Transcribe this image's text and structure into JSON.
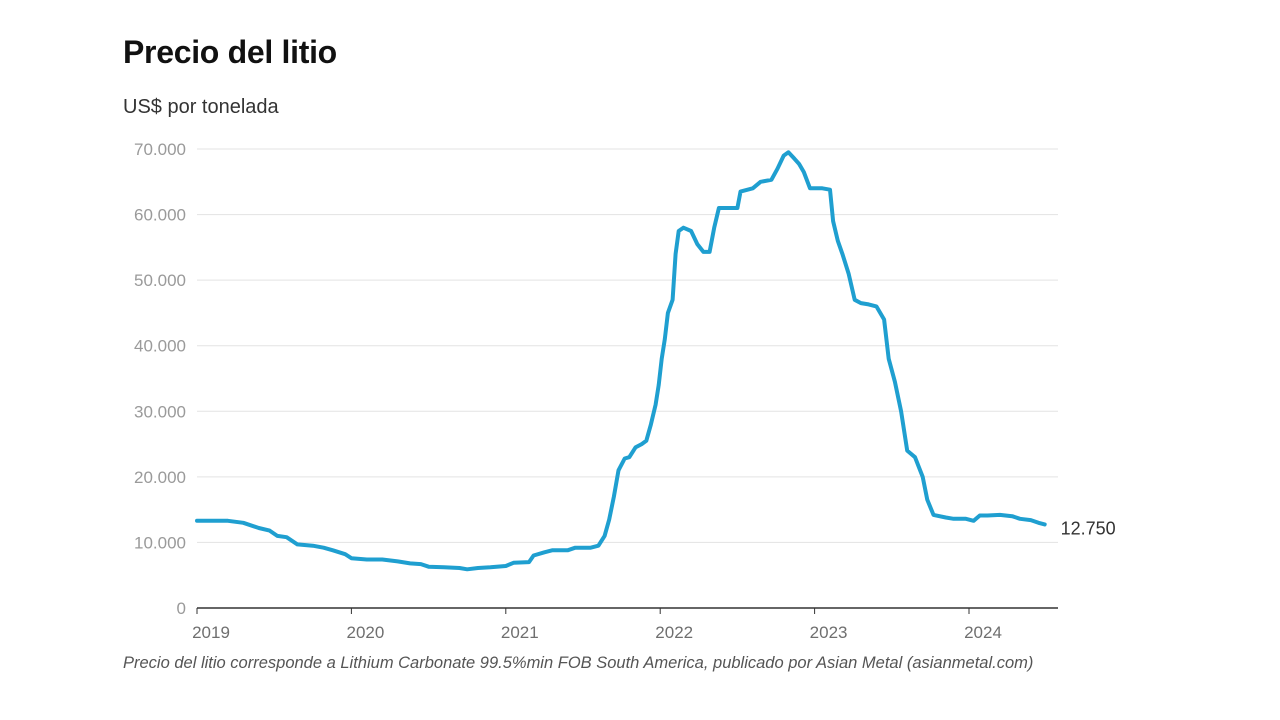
{
  "title": "Precio del litio",
  "subtitle": "US$ por tonelada",
  "note": "Precio del litio corresponde a Lithium Carbonate 99.5%min FOB South America, publicado por Asian Metal (asianmetal.com)",
  "colors": {
    "line": "#1f9fd0",
    "grid": "#e3e3e3",
    "axis": "#333333"
  },
  "chart_data": {
    "type": "line",
    "title": "Precio del litio",
    "ylabel": "US$ por tonelada",
    "xlabel": "",
    "xlim": [
      2019,
      2024.5
    ],
    "ylim": [
      0,
      70000
    ],
    "y_ticks": [
      {
        "value": 0,
        "label": "0"
      },
      {
        "value": 10000,
        "label": "10.000"
      },
      {
        "value": 20000,
        "label": "20.000"
      },
      {
        "value": 30000,
        "label": "30.000"
      },
      {
        "value": 40000,
        "label": "40.000"
      },
      {
        "value": 50000,
        "label": "50.000"
      },
      {
        "value": 60000,
        "label": "60.000"
      },
      {
        "value": 70000,
        "label": "70.000"
      }
    ],
    "x_ticks": [
      {
        "value": 2019,
        "label": "2019"
      },
      {
        "value": 2020,
        "label": "2020"
      },
      {
        "value": 2021,
        "label": "2021"
      },
      {
        "value": 2022,
        "label": "2022"
      },
      {
        "value": 2023,
        "label": "2023"
      },
      {
        "value": 2024,
        "label": "2024"
      }
    ],
    "grid": true,
    "end_label": "12.750",
    "series": [
      {
        "points": [
          [
            2019.0,
            13300
          ],
          [
            2019.1,
            13300
          ],
          [
            2019.2,
            13300
          ],
          [
            2019.3,
            13000
          ],
          [
            2019.4,
            12200
          ],
          [
            2019.47,
            11800
          ],
          [
            2019.52,
            11000
          ],
          [
            2019.58,
            10800
          ],
          [
            2019.65,
            9700
          ],
          [
            2019.75,
            9500
          ],
          [
            2019.82,
            9200
          ],
          [
            2019.88,
            8800
          ],
          [
            2019.96,
            8200
          ],
          [
            2020.0,
            7600
          ],
          [
            2020.1,
            7400
          ],
          [
            2020.2,
            7400
          ],
          [
            2020.3,
            7100
          ],
          [
            2020.38,
            6800
          ],
          [
            2020.45,
            6700
          ],
          [
            2020.5,
            6300
          ],
          [
            2020.6,
            6200
          ],
          [
            2020.7,
            6100
          ],
          [
            2020.75,
            5900
          ],
          [
            2020.82,
            6100
          ],
          [
            2020.9,
            6200
          ],
          [
            2021.0,
            6400
          ],
          [
            2021.05,
            6900
          ],
          [
            2021.15,
            7000
          ],
          [
            2021.18,
            8000
          ],
          [
            2021.25,
            8500
          ],
          [
            2021.3,
            8800
          ],
          [
            2021.4,
            8800
          ],
          [
            2021.45,
            9200
          ],
          [
            2021.55,
            9200
          ],
          [
            2021.6,
            9500
          ],
          [
            2021.64,
            11000
          ],
          [
            2021.67,
            13500
          ],
          [
            2021.7,
            17000
          ],
          [
            2021.73,
            21000
          ],
          [
            2021.77,
            22800
          ],
          [
            2021.8,
            23000
          ],
          [
            2021.84,
            24500
          ],
          [
            2021.88,
            25000
          ],
          [
            2021.91,
            25500
          ],
          [
            2021.94,
            28000
          ],
          [
            2021.97,
            31000
          ],
          [
            2021.99,
            34000
          ],
          [
            2022.01,
            38000
          ],
          [
            2022.03,
            41000
          ],
          [
            2022.05,
            45000
          ],
          [
            2022.08,
            47000
          ],
          [
            2022.1,
            54000
          ],
          [
            2022.12,
            57500
          ],
          [
            2022.15,
            58000
          ],
          [
            2022.2,
            57500
          ],
          [
            2022.24,
            55500
          ],
          [
            2022.28,
            54300
          ],
          [
            2022.32,
            54300
          ],
          [
            2022.35,
            58000
          ],
          [
            2022.38,
            61000
          ],
          [
            2022.45,
            61000
          ],
          [
            2022.5,
            61000
          ],
          [
            2022.52,
            63500
          ],
          [
            2022.6,
            64000
          ],
          [
            2022.65,
            65000
          ],
          [
            2022.72,
            65300
          ],
          [
            2022.76,
            67000
          ],
          [
            2022.8,
            69000
          ],
          [
            2022.83,
            69500
          ],
          [
            2022.87,
            68500
          ],
          [
            2022.9,
            67700
          ],
          [
            2022.93,
            66500
          ],
          [
            2022.97,
            64000
          ],
          [
            2023.05,
            64000
          ],
          [
            2023.1,
            63800
          ],
          [
            2023.12,
            59000
          ],
          [
            2023.15,
            56000
          ],
          [
            2023.18,
            54000
          ],
          [
            2023.22,
            51000
          ],
          [
            2023.26,
            47000
          ],
          [
            2023.3,
            46500
          ],
          [
            2023.35,
            46300
          ],
          [
            2023.4,
            46000
          ],
          [
            2023.45,
            44000
          ],
          [
            2023.48,
            38000
          ],
          [
            2023.52,
            34500
          ],
          [
            2023.56,
            30000
          ],
          [
            2023.6,
            24000
          ],
          [
            2023.65,
            23000
          ],
          [
            2023.7,
            20000
          ],
          [
            2023.73,
            16500
          ],
          [
            2023.77,
            14200
          ],
          [
            2023.85,
            13800
          ],
          [
            2023.9,
            13600
          ],
          [
            2023.98,
            13600
          ],
          [
            2024.03,
            13300
          ],
          [
            2024.07,
            14100
          ],
          [
            2024.12,
            14100
          ],
          [
            2024.2,
            14200
          ],
          [
            2024.28,
            14000
          ],
          [
            2024.33,
            13600
          ],
          [
            2024.4,
            13400
          ],
          [
            2024.45,
            13000
          ],
          [
            2024.49,
            12750
          ]
        ]
      }
    ]
  }
}
